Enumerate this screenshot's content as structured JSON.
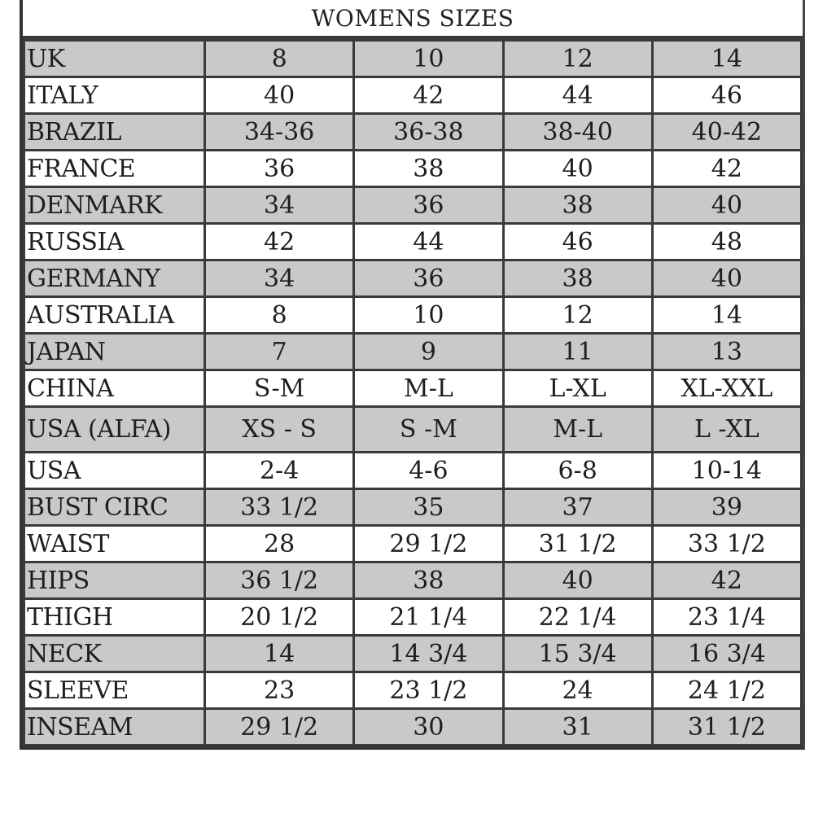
{
  "title": "WOMENS SIZES",
  "colors": {
    "shaded_row": "#c9c9c9",
    "plain_row": "#ffffff",
    "border": "#3a3a3a"
  },
  "rows": [
    {
      "label": "UK",
      "values": [
        "8",
        "10",
        "12",
        "14"
      ],
      "shaded": true
    },
    {
      "label": "ITALY",
      "values": [
        "40",
        "42",
        "44",
        "46"
      ],
      "shaded": false
    },
    {
      "label": "BRAZIL",
      "values": [
        "34-36",
        "36-38",
        "38-40",
        "40-42"
      ],
      "shaded": true
    },
    {
      "label": "FRANCE",
      "values": [
        "36",
        "38",
        "40",
        "42"
      ],
      "shaded": false
    },
    {
      "label": "DENMARK",
      "values": [
        "34",
        "36",
        "38",
        "40"
      ],
      "shaded": true
    },
    {
      "label": "RUSSIA",
      "values": [
        "42",
        "44",
        "46",
        "48"
      ],
      "shaded": false
    },
    {
      "label": "GERMANY",
      "values": [
        "34",
        "36",
        "38",
        "40"
      ],
      "shaded": true
    },
    {
      "label": "AUSTRALIA",
      "values": [
        "8",
        "10",
        "12",
        "14"
      ],
      "shaded": false
    },
    {
      "label": "JAPAN",
      "values": [
        "7",
        "9",
        "11",
        "13"
      ],
      "shaded": true
    },
    {
      "label": "CHINA",
      "values": [
        "S-M",
        "M-L",
        "L-XL",
        "XL-XXL"
      ],
      "shaded": false
    },
    {
      "label": "USA  (ALFA)",
      "values": [
        "XS - S",
        "S -M",
        "M-L",
        "L -XL"
      ],
      "shaded": true
    },
    {
      "label": "USA",
      "values": [
        "2-4",
        "4-6",
        "6-8",
        "10-14"
      ],
      "shaded": false
    },
    {
      "label": "BUST CIRC",
      "values": [
        "33 1/2",
        "35",
        "37",
        "39"
      ],
      "shaded": true
    },
    {
      "label": "WAIST",
      "values": [
        "28",
        "29 1/2",
        "31 1/2",
        "33 1/2"
      ],
      "shaded": false
    },
    {
      "label": "HIPS",
      "values": [
        "36 1/2",
        "38",
        "40",
        "42"
      ],
      "shaded": true
    },
    {
      "label": "THIGH",
      "values": [
        "20 1/2",
        "21 1/4",
        "22 1/4",
        "23 1/4"
      ],
      "shaded": false
    },
    {
      "label": "NECK",
      "values": [
        "14",
        "14 3/4",
        "15 3/4",
        "16 3/4"
      ],
      "shaded": true
    },
    {
      "label": "SLEEVE",
      "values": [
        "23",
        "23 1/2",
        "24",
        "24 1/2"
      ],
      "shaded": false
    },
    {
      "label": "INSEAM",
      "values": [
        "29 1/2",
        "30",
        "31",
        "31 1/2"
      ],
      "shaded": true
    }
  ]
}
